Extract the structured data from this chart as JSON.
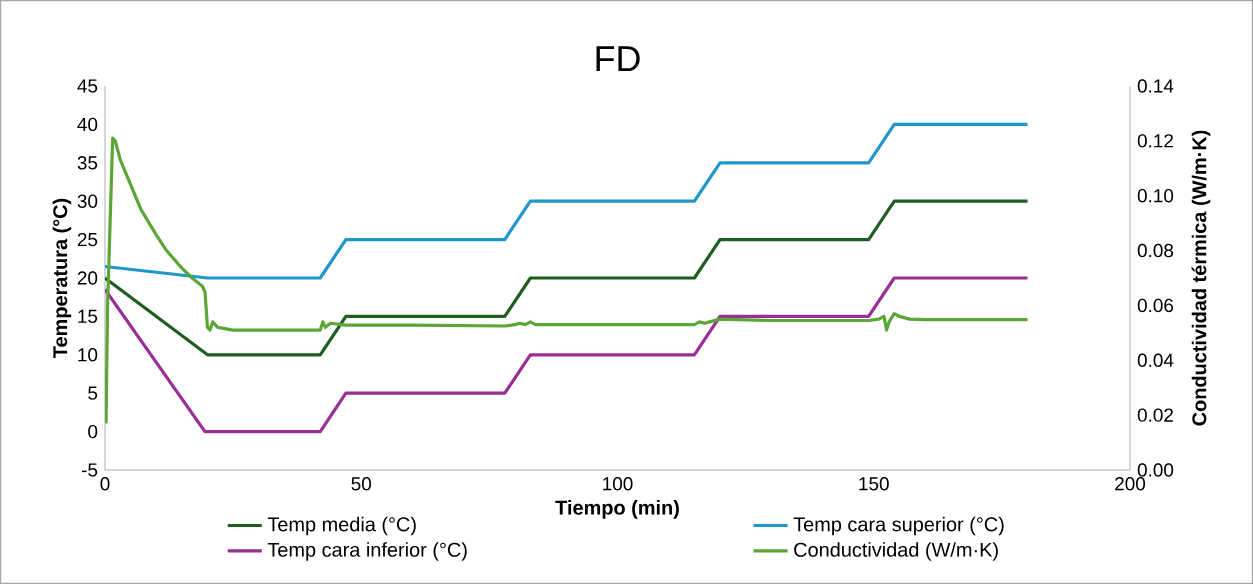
{
  "chart_data": {
    "type": "line",
    "title": "FD",
    "xlabel": "Tiempo (min)",
    "ylabel": "Temperatura (°C)",
    "y2label": "Conductividad térmica (W/m·K)",
    "xlim": [
      0,
      200
    ],
    "xticks": [
      0,
      50,
      100,
      150,
      200
    ],
    "ylim": [
      -5,
      45
    ],
    "yticks": [
      -5,
      0,
      5,
      10,
      15,
      20,
      25,
      30,
      35,
      40,
      45
    ],
    "y2lim": [
      0,
      0.14
    ],
    "y2ticks": [
      {
        "value": 0,
        "label": "0.00"
      },
      0.02,
      0.04,
      0.06,
      0.08,
      {
        "value": 0.1,
        "label": "0.10"
      },
      0.12,
      0.14
    ],
    "legend": "bottom",
    "series": [
      {
        "name": "Temp media (°C)",
        "color": "#1e5e20",
        "x": [
          0,
          20,
          42,
          47,
          78,
          83,
          115,
          120,
          149,
          154,
          180
        ],
        "values": [
          20,
          10,
          10,
          15,
          15,
          20,
          20,
          25,
          25,
          30,
          30
        ]
      },
      {
        "name": "Temp cara superior (°C)",
        "color": "#1f97c9",
        "x": [
          0,
          20,
          42,
          47,
          78,
          83,
          115,
          120,
          149,
          154,
          180
        ],
        "values": [
          21.5,
          20,
          20,
          25,
          25,
          30,
          30,
          35,
          35,
          40,
          40
        ]
      },
      {
        "name": "Temp cara inferior (°C)",
        "color": "#9a2d96",
        "x": [
          0,
          19.5,
          42,
          47,
          78,
          83,
          115,
          120,
          149,
          154,
          180
        ],
        "values": [
          18.5,
          0,
          0,
          5,
          5,
          10,
          10,
          15,
          15,
          20,
          20
        ]
      },
      {
        "name": "Conductividad (W/m·K)",
        "color": "#5aa637",
        "axis": "y2",
        "x": [
          0.2,
          0.5,
          1.5,
          2,
          3,
          5,
          7,
          10,
          12,
          15,
          17,
          19,
          19.5,
          20,
          20.5,
          21,
          22,
          25,
          30,
          42,
          42.5,
          43,
          44,
          47,
          60,
          78,
          80,
          81,
          82,
          83,
          84,
          90,
          115,
          116,
          117,
          118,
          120,
          130,
          149,
          151,
          152,
          152.5,
          153,
          154,
          155,
          157,
          160,
          180
        ],
        "values": [
          0.017,
          0.06,
          0.121,
          0.12,
          0.113,
          0.104,
          0.095,
          0.0857,
          0.08,
          0.0736,
          0.07,
          0.067,
          0.065,
          0.052,
          0.051,
          0.054,
          0.052,
          0.051,
          0.051,
          0.051,
          0.054,
          0.052,
          0.0535,
          0.0528,
          0.0528,
          0.0525,
          0.053,
          0.0535,
          0.053,
          0.054,
          0.053,
          0.053,
          0.053,
          0.054,
          0.0535,
          0.054,
          0.055,
          0.0545,
          0.0545,
          0.055,
          0.056,
          0.051,
          0.054,
          0.057,
          0.056,
          0.055,
          0.0548,
          0.0548
        ]
      }
    ]
  }
}
